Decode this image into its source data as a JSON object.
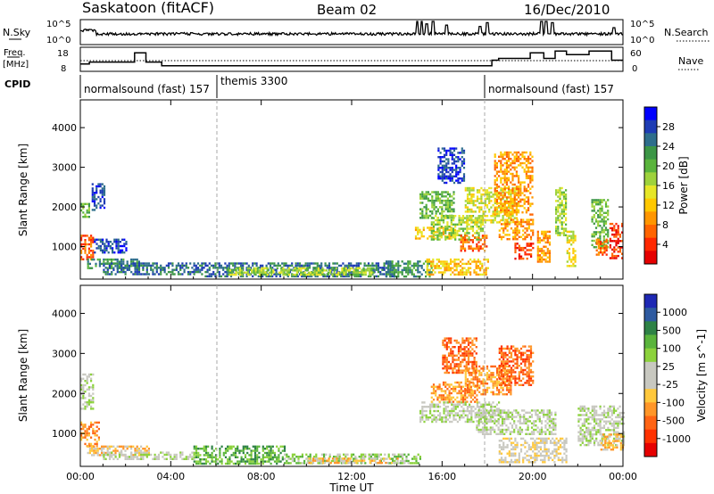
{
  "header": {
    "station": "Saskatoon (fitACF)",
    "beam": "Beam 02",
    "date": "16/Dec/2010"
  },
  "top_panels": {
    "nsky_label": "N.Sky",
    "nsky_ticks": [
      "10^5",
      "10^0"
    ],
    "nsearch_label": "N.Search",
    "nsearch_ticks": [
      "10^5",
      "10^0"
    ],
    "freq_label_line1": "Freq.",
    "freq_label_line2": "[MHz]",
    "freq_ticks": [
      "18",
      "8"
    ],
    "nave_label": "Nave",
    "nave_ticks": [
      "60",
      "0"
    ],
    "cpid_label": "CPID",
    "cpid_segments": [
      {
        "label": "normalsound (fast) 157",
        "start_h": 0
      },
      {
        "label": "themis 3300",
        "start_h": 6
      },
      {
        "label": "normalsound (fast) 157",
        "start_h": 18
      }
    ]
  },
  "colorbars": {
    "power": {
      "label": "Power [dB]",
      "ticks": [
        "28",
        "24",
        "20",
        "16",
        "12",
        "8",
        "4"
      ],
      "colors": [
        "#0000ff",
        "#1e3cb4",
        "#2e6e8c",
        "#3c9646",
        "#5ab43c",
        "#9ed23c",
        "#e6e628",
        "#ffc800",
        "#ff9600",
        "#ff6400",
        "#ff2800",
        "#e60000"
      ]
    },
    "velocity": {
      "label": "Velocity [m s^-1]",
      "ticks": [
        "1000",
        "500",
        "100",
        "25",
        "-25",
        "-100",
        "-500",
        "-1000"
      ],
      "colors": [
        "#1e28b4",
        "#2e5aa0",
        "#2e8246",
        "#5ab43c",
        "#8cd23c",
        "#c8c8c0",
        "#c8c8c0",
        "#ffc83c",
        "#ff9628",
        "#ff6414",
        "#ff3200",
        "#e60000"
      ]
    }
  },
  "chart_data": {
    "type": "heatmap",
    "xlabel": "Time UT",
    "x_ticks": [
      "00:00",
      "04:00",
      "08:00",
      "12:00",
      "16:00",
      "20:00",
      "00:00"
    ],
    "xlim_hours": [
      0,
      24
    ],
    "ylabel": "Slant Range [km]",
    "y_ticks": [
      1000,
      2000,
      3000,
      4000
    ],
    "ylim_km": [
      180,
      4700
    ],
    "vertical_markers_h": [
      6,
      18
    ],
    "freq_steps": [
      {
        "from": 0,
        "to": 0.4,
        "mhz": 10
      },
      {
        "from": 0.4,
        "to": 2.4,
        "mhz": 11
      },
      {
        "from": 2.4,
        "to": 2.9,
        "mhz": 16
      },
      {
        "from": 2.9,
        "to": 3.6,
        "mhz": 11
      },
      {
        "from": 3.6,
        "to": 18.2,
        "mhz": 9
      },
      {
        "from": 18.2,
        "to": 18.5,
        "mhz": 12
      },
      {
        "from": 18.5,
        "to": 19.9,
        "mhz": 13
      },
      {
        "from": 19.9,
        "to": 20.5,
        "mhz": 16
      },
      {
        "from": 20.5,
        "to": 21.0,
        "mhz": 13
      },
      {
        "from": 21.0,
        "to": 21.5,
        "mhz": 17
      },
      {
        "from": 21.5,
        "to": 22.5,
        "mhz": 15
      },
      {
        "from": 22.5,
        "to": 23.5,
        "mhz": 17
      },
      {
        "from": 23.5,
        "to": 24,
        "mhz": 12
      }
    ],
    "power_regions": [
      {
        "t0": 0.0,
        "t1": 0.6,
        "r0": 700,
        "r1": 1300,
        "level": 9
      },
      {
        "t0": 0.0,
        "t1": 0.4,
        "r0": 1700,
        "r1": 2100,
        "level": 4
      },
      {
        "t0": 0.5,
        "t1": 1.1,
        "r0": 1900,
        "r1": 2600,
        "level": 1
      },
      {
        "t0": 0.3,
        "t1": 2.6,
        "r0": 450,
        "r1": 700,
        "level": 3
      },
      {
        "t0": 0.6,
        "t1": 2.0,
        "r0": 850,
        "r1": 1200,
        "level": 1
      },
      {
        "t0": 1.0,
        "t1": 5.5,
        "r0": 300,
        "r1": 600,
        "level": 2
      },
      {
        "t0": 5.5,
        "t1": 14.0,
        "r0": 250,
        "r1": 600,
        "level": 2
      },
      {
        "t0": 6.5,
        "t1": 13.0,
        "r0": 300,
        "r1": 480,
        "level": 5
      },
      {
        "t0": 13.5,
        "t1": 15.5,
        "r0": 250,
        "r1": 650,
        "level": 3
      },
      {
        "t0": 14.8,
        "t1": 16.6,
        "r0": 1200,
        "r1": 1500,
        "level": 7
      },
      {
        "t0": 15.0,
        "t1": 16.5,
        "r0": 1700,
        "r1": 2400,
        "level": 4
      },
      {
        "t0": 15.5,
        "t1": 17.8,
        "r0": 1200,
        "r1": 1800,
        "level": 5
      },
      {
        "t0": 16.8,
        "t1": 18.0,
        "r0": 900,
        "r1": 1300,
        "level": 9
      },
      {
        "t0": 15.3,
        "t1": 18.0,
        "r0": 300,
        "r1": 700,
        "level": 7
      },
      {
        "t0": 15.8,
        "t1": 17.0,
        "r0": 2600,
        "r1": 3500,
        "level": 1
      },
      {
        "t0": 17.0,
        "t1": 19.3,
        "r0": 1600,
        "r1": 2500,
        "level": 6
      },
      {
        "t0": 18.3,
        "t1": 20.0,
        "r0": 1800,
        "r1": 3400,
        "level": 8
      },
      {
        "t0": 18.5,
        "t1": 20.0,
        "r0": 1200,
        "r1": 1700,
        "level": 8
      },
      {
        "t0": 19.2,
        "t1": 20.0,
        "r0": 700,
        "r1": 1100,
        "level": 10
      },
      {
        "t0": 20.2,
        "t1": 20.8,
        "r0": 600,
        "r1": 1400,
        "level": 8
      },
      {
        "t0": 21.0,
        "t1": 21.5,
        "r0": 1300,
        "r1": 2500,
        "level": 5
      },
      {
        "t0": 21.5,
        "t1": 21.9,
        "r0": 500,
        "r1": 1400,
        "level": 6
      },
      {
        "t0": 22.6,
        "t1": 23.3,
        "r0": 1000,
        "r1": 2200,
        "level": 4
      },
      {
        "t0": 22.8,
        "t1": 23.3,
        "r0": 800,
        "r1": 1200,
        "level": 9
      },
      {
        "t0": 23.4,
        "t1": 24.0,
        "r0": 700,
        "r1": 1600,
        "level": 10
      }
    ],
    "velocity_regions": [
      {
        "t0": 0.0,
        "t1": 0.6,
        "r0": 1600,
        "r1": 2500,
        "level": 5
      },
      {
        "t0": 0.0,
        "t1": 0.8,
        "r0": 700,
        "r1": 1300,
        "level": 8
      },
      {
        "t0": 0.3,
        "t1": 3.0,
        "r0": 450,
        "r1": 700,
        "level": 7
      },
      {
        "t0": 1.0,
        "t1": 5.0,
        "r0": 350,
        "r1": 550,
        "level": 5
      },
      {
        "t0": 5.0,
        "t1": 9.0,
        "r0": 250,
        "r1": 700,
        "level": 3
      },
      {
        "t0": 9.0,
        "t1": 15.0,
        "r0": 250,
        "r1": 500,
        "level": 4
      },
      {
        "t0": 10.0,
        "t1": 14.0,
        "r0": 250,
        "r1": 400,
        "level": 7
      },
      {
        "t0": 15.0,
        "t1": 18.5,
        "r0": 1300,
        "r1": 1800,
        "level": 5
      },
      {
        "t0": 15.5,
        "t1": 17.5,
        "r0": 1800,
        "r1": 2300,
        "level": 8
      },
      {
        "t0": 16.0,
        "t1": 17.5,
        "r0": 2500,
        "r1": 3400,
        "level": 9
      },
      {
        "t0": 17.0,
        "t1": 19.0,
        "r0": 2000,
        "r1": 2700,
        "level": 8
      },
      {
        "t0": 18.5,
        "t1": 20.0,
        "r0": 2200,
        "r1": 3200,
        "level": 9
      },
      {
        "t0": 17.5,
        "t1": 21.0,
        "r0": 1000,
        "r1": 1600,
        "level": 5
      },
      {
        "t0": 18.5,
        "t1": 21.5,
        "r0": 300,
        "r1": 900,
        "level": 6
      },
      {
        "t0": 22.0,
        "t1": 24.0,
        "r0": 700,
        "r1": 1700,
        "level": 5
      },
      {
        "t0": 23.0,
        "t1": 24.0,
        "r0": 600,
        "r1": 1000,
        "level": 7
      }
    ]
  }
}
